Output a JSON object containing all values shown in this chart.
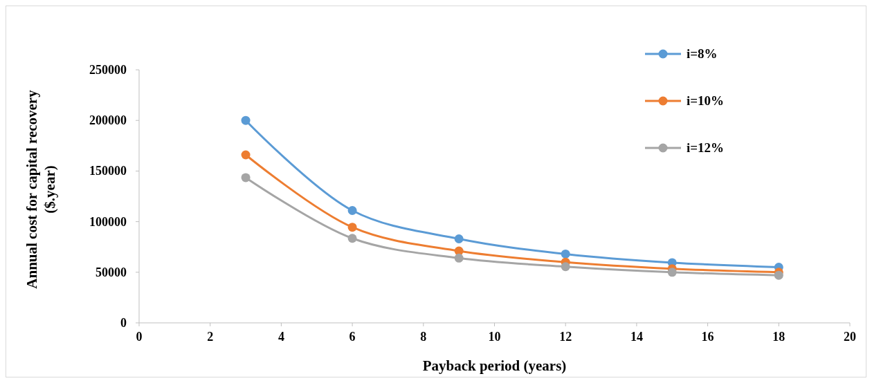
{
  "chart_data": {
    "type": "line",
    "xlabel": "Payback period (years)",
    "ylabel": "Annual cost for capital recovery ($.year)",
    "x": [
      3,
      6,
      9,
      12,
      15,
      18
    ],
    "series": [
      {
        "name": "i=8%",
        "color": "#5b9bd5",
        "values": [
          200000,
          111000,
          83000,
          68000,
          59500,
          55000
        ]
      },
      {
        "name": "i=10%",
        "color": "#ed7d31",
        "values": [
          166000,
          94500,
          71000,
          60000,
          53500,
          50000
        ]
      },
      {
        "name": "i=12%",
        "color": "#a5a5a5",
        "values": [
          143500,
          83500,
          64000,
          55500,
          50000,
          47000
        ]
      }
    ],
    "xlim": [
      0,
      20
    ],
    "xticks": [
      0,
      2,
      4,
      6,
      8,
      10,
      12,
      14,
      16,
      18,
      20
    ],
    "ylim": [
      0,
      250000
    ],
    "yticks": [
      0,
      50000,
      100000,
      150000,
      200000,
      250000
    ],
    "grid": false,
    "legend": "top right",
    "marker": "circle",
    "line_style": "solid"
  }
}
